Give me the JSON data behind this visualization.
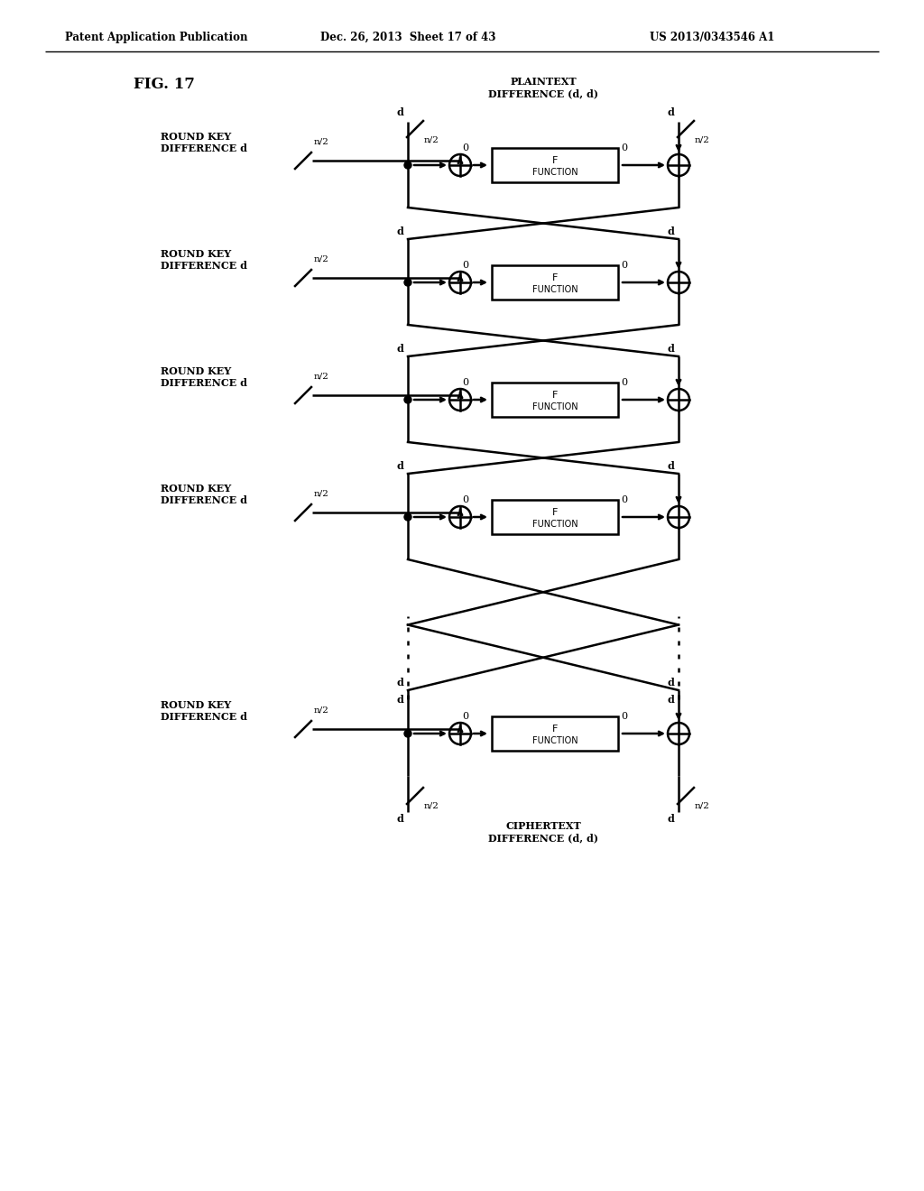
{
  "title_header": "Patent Application Publication",
  "date_header": "Dec. 26, 2013  Sheet 17 of 43",
  "patent_header": "US 2013/0343546 A1",
  "fig_label": "FIG. 17",
  "plaintext_label": "PLAINTEXT\nDIFFERENCE (d, d)",
  "ciphertext_label": "CIPHERTEXT\nDIFFERENCE (d, d)",
  "round_key_label": "ROUND KEY\nDIFFERENCE d",
  "n2_label": "n/2",
  "d_label": "d",
  "zero_label": "0",
  "f_func_label": "F\nFUNCTION",
  "num_rounds": 5,
  "bg_color": "#ffffff",
  "line_color": "#000000",
  "text_color": "#000000"
}
